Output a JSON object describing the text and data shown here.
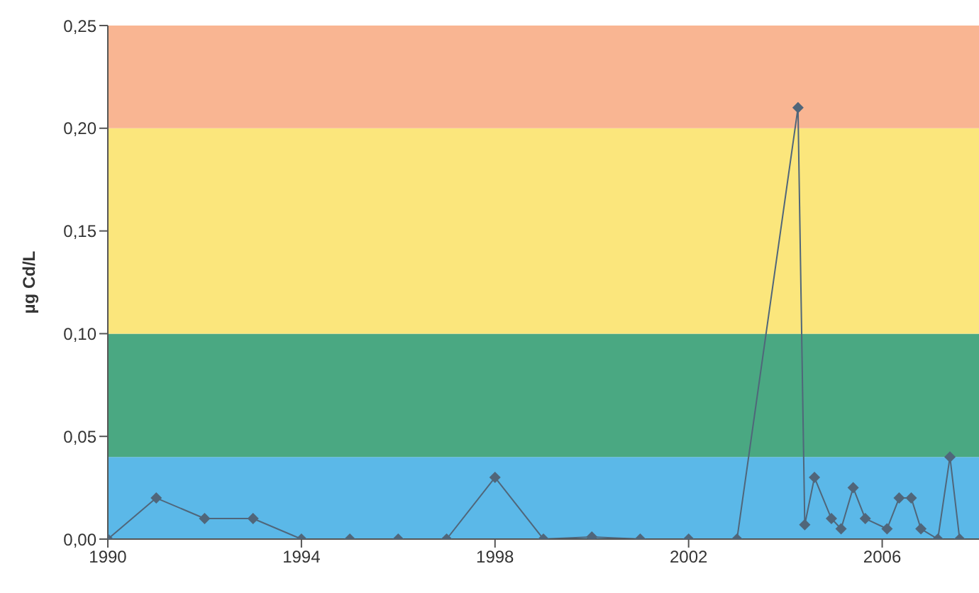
{
  "chart_data": {
    "type": "line",
    "ylabel": "µg Cd/L",
    "marker": "diamond",
    "x": [
      1990,
      1991,
      1992,
      1993,
      1994,
      1995,
      1996,
      1997,
      1998,
      1999,
      2000,
      2001,
      2002,
      2003,
      2004.26,
      2004.4,
      2004.6,
      2004.95,
      2005.15,
      2005.4,
      2005.65,
      2006.1,
      2006.35,
      2006.6,
      2006.8,
      2007.15,
      2007.4,
      2007.6
    ],
    "series": [
      {
        "color": "#50667a",
        "values": [
          0,
          0.02,
          0.01,
          0.01,
          0,
          0,
          0,
          0,
          0.03,
          0,
          0.001,
          0,
          0,
          0,
          0.21,
          0.007,
          0.03,
          0.01,
          0.005,
          0.025,
          0.01,
          0.005,
          0.02,
          0.02,
          0.005,
          0,
          0.04,
          0
        ]
      }
    ],
    "xlim": [
      1990,
      2008
    ],
    "xticks": [
      1990,
      1994,
      1998,
      2002,
      2006
    ],
    "ylim": [
      0,
      0.25
    ],
    "yticks": [
      {
        "value": 0,
        "label": "0,00"
      },
      {
        "value": 0.05,
        "label": "0,05"
      },
      {
        "value": 0.1,
        "label": "0,10"
      },
      {
        "value": 0.15,
        "label": "0,15"
      },
      {
        "value": 0.2,
        "label": "0,20"
      },
      {
        "value": 0.25,
        "label": "0,25"
      }
    ],
    "bands": [
      {
        "axis": "y",
        "from": 0,
        "to": 0.04,
        "color": "#5bb8e8"
      },
      {
        "axis": "y",
        "from": 0.04,
        "to": 0.1,
        "color": "#4aa882"
      },
      {
        "axis": "y",
        "from": 0.1,
        "to": 0.2,
        "color": "#fbe67c"
      },
      {
        "axis": "y",
        "from": 0.2,
        "to": 0.25,
        "color": "#f9b592"
      }
    ],
    "grid": false,
    "legend": false
  }
}
